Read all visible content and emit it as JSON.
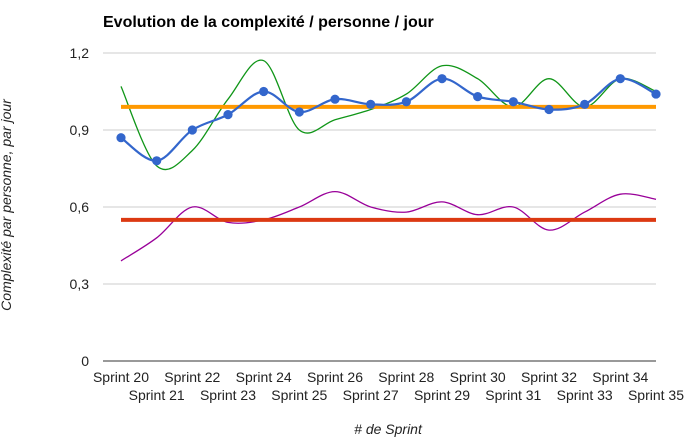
{
  "chart_data": {
    "type": "line",
    "title": "Evolution de la complexité / personne / jour",
    "xlabel": "# de Sprint",
    "ylabel": "Complexité par personne, par jour",
    "categories": [
      "Sprint 20",
      "Sprint 21",
      "Sprint 22",
      "Sprint 23",
      "Sprint 24",
      "Sprint 25",
      "Sprint 26",
      "Sprint 27",
      "Sprint 28",
      "Sprint 29",
      "Sprint 30",
      "Sprint 31",
      "Sprint 32",
      "Sprint 33",
      "Sprint 34",
      "Sprint 35"
    ],
    "ylim": [
      0,
      1.2
    ],
    "yticks": [
      0,
      0.3,
      0.6,
      0.9,
      1.2
    ],
    "ytick_labels": [
      "0",
      "0,3",
      "0,6",
      "0,9",
      "1,2"
    ],
    "grid": true,
    "legend": "none",
    "series": [
      {
        "values": [
          0.87,
          0.78,
          0.9,
          0.96,
          1.05,
          0.97,
          1.02,
          1.0,
          1.01,
          1.1,
          1.03,
          1.01,
          0.98,
          1.0,
          1.1,
          1.04
        ],
        "color": "#3366cc",
        "style": "line-with-markers"
      },
      {
        "values": [
          1.07,
          0.76,
          0.82,
          1.02,
          1.17,
          0.9,
          0.94,
          0.98,
          1.04,
          1.15,
          1.1,
          0.99,
          1.1,
          0.99,
          1.1,
          1.05
        ],
        "color": "#109618",
        "style": "smooth-line"
      },
      {
        "values": [
          0.39,
          0.48,
          0.6,
          0.54,
          0.55,
          0.6,
          0.66,
          0.6,
          0.58,
          0.62,
          0.57,
          0.6,
          0.51,
          0.58,
          0.65,
          0.63
        ],
        "color": "#990099",
        "style": "smooth-line"
      },
      {
        "values": [
          0.99,
          0.99,
          0.99,
          0.99,
          0.99,
          0.99,
          0.99,
          0.99,
          0.99,
          0.99,
          0.99,
          0.99,
          0.99,
          0.99,
          0.99,
          0.99
        ],
        "color": "#ff9900",
        "style": "thick-line"
      },
      {
        "values": [
          0.55,
          0.55,
          0.55,
          0.55,
          0.55,
          0.55,
          0.55,
          0.55,
          0.55,
          0.55,
          0.55,
          0.55,
          0.55,
          0.55,
          0.55,
          0.55
        ],
        "color": "#dc3912",
        "style": "thick-line"
      }
    ]
  }
}
